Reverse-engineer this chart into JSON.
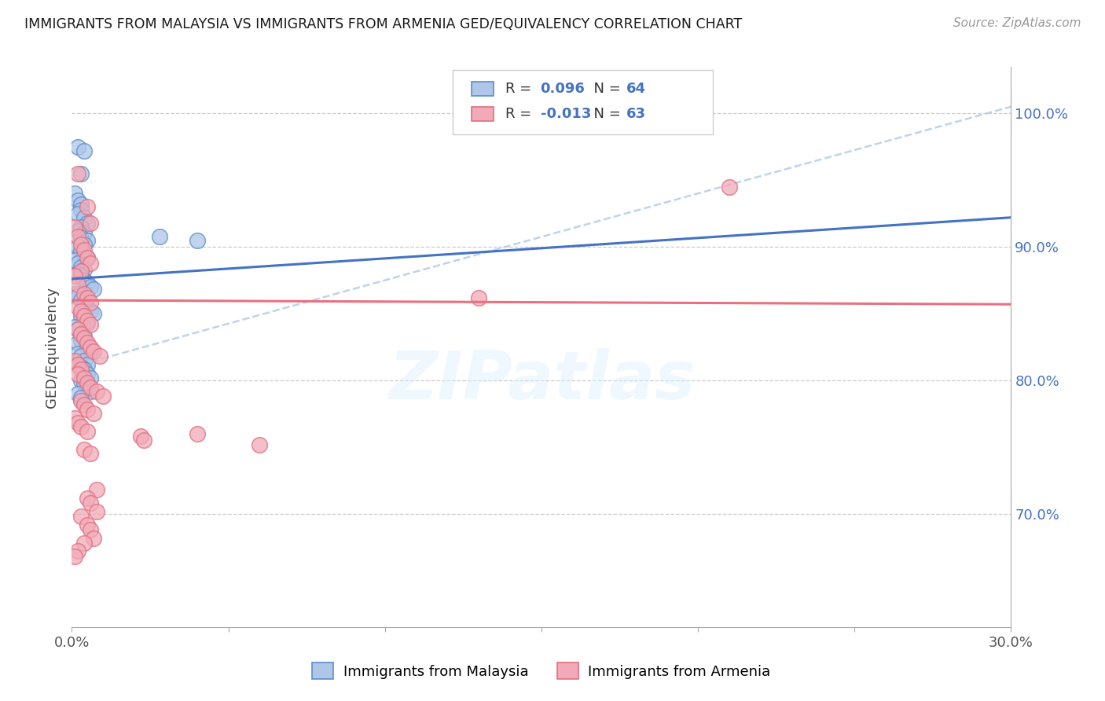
{
  "title": "IMMIGRANTS FROM MALAYSIA VS IMMIGRANTS FROM ARMENIA GED/EQUIVALENCY CORRELATION CHART",
  "source": "Source: ZipAtlas.com",
  "ylabel": "GED/Equivalency",
  "x_range": [
    0.0,
    0.3
  ],
  "y_range": [
    0.615,
    1.035
  ],
  "y_ticks": [
    0.7,
    0.8,
    0.9,
    1.0
  ],
  "y_tick_labels": [
    "70.0%",
    "80.0%",
    "90.0%",
    "100.0%"
  ],
  "x_ticks": [
    0.0,
    0.05,
    0.1,
    0.15,
    0.2,
    0.25,
    0.3
  ],
  "x_tick_labels": [
    "0.0%",
    "",
    "",
    "",
    "",
    "",
    "30.0%"
  ],
  "malaysia_R": 0.096,
  "malaysia_N": 64,
  "armenia_R": -0.013,
  "armenia_N": 63,
  "malaysia_color": "#aec6e8",
  "armenia_color": "#f2aab8",
  "malaysia_edge_color": "#5b8fc9",
  "armenia_edge_color": "#e07080",
  "malaysia_line_color": "#4472c4",
  "armenia_line_color": "#e87080",
  "dashed_line_color": "#b8cfe8",
  "legend_label_malaysia": "Immigrants from Malaysia",
  "legend_label_armenia": "Immigrants from Armenia",
  "watermark": "ZIPatlas",
  "malaysia_line_x0": 0.0,
  "malaysia_line_y0": 0.876,
  "malaysia_line_x1": 0.3,
  "malaysia_line_y1": 0.922,
  "armenia_line_x0": 0.0,
  "armenia_line_y0": 0.86,
  "armenia_line_x1": 0.3,
  "armenia_line_y1": 0.857,
  "dash_line_x0": 0.0,
  "dash_line_y0": 0.81,
  "dash_line_x1": 0.3,
  "dash_line_y1": 1.005,
  "malaysia_x": [
    0.002,
    0.004,
    0.003,
    0.001,
    0.002,
    0.003,
    0.003,
    0.002,
    0.004,
    0.005,
    0.003,
    0.002,
    0.004,
    0.003,
    0.005,
    0.004,
    0.002,
    0.003,
    0.004,
    0.005,
    0.001,
    0.002,
    0.003,
    0.004,
    0.002,
    0.003,
    0.004,
    0.005,
    0.006,
    0.007,
    0.001,
    0.002,
    0.003,
    0.004,
    0.005,
    0.006,
    0.007,
    0.003,
    0.004,
    0.005,
    0.001,
    0.002,
    0.003,
    0.004,
    0.003,
    0.002,
    0.005,
    0.006,
    0.002,
    0.003,
    0.004,
    0.005,
    0.003,
    0.004,
    0.005,
    0.006,
    0.003,
    0.004,
    0.005,
    0.006,
    0.002,
    0.003,
    0.04,
    0.028
  ],
  "malaysia_y": [
    0.975,
    0.972,
    0.955,
    0.94,
    0.935,
    0.932,
    0.928,
    0.925,
    0.922,
    0.918,
    0.915,
    0.912,
    0.91,
    0.907,
    0.905,
    0.902,
    0.9,
    0.897,
    0.895,
    0.892,
    0.89,
    0.888,
    0.885,
    0.883,
    0.88,
    0.878,
    0.875,
    0.873,
    0.87,
    0.868,
    0.865,
    0.863,
    0.86,
    0.857,
    0.855,
    0.852,
    0.85,
    0.848,
    0.845,
    0.843,
    0.84,
    0.838,
    0.835,
    0.833,
    0.83,
    0.828,
    0.825,
    0.822,
    0.82,
    0.818,
    0.815,
    0.812,
    0.81,
    0.808,
    0.805,
    0.802,
    0.8,
    0.797,
    0.795,
    0.792,
    0.79,
    0.787,
    0.905,
    0.908
  ],
  "armenia_x": [
    0.002,
    0.005,
    0.006,
    0.001,
    0.002,
    0.003,
    0.004,
    0.005,
    0.006,
    0.003,
    0.001,
    0.002,
    0.004,
    0.005,
    0.006,
    0.002,
    0.003,
    0.004,
    0.005,
    0.006,
    0.002,
    0.003,
    0.004,
    0.005,
    0.006,
    0.007,
    0.009,
    0.001,
    0.002,
    0.003,
    0.002,
    0.004,
    0.005,
    0.006,
    0.008,
    0.01,
    0.003,
    0.004,
    0.005,
    0.007,
    0.001,
    0.002,
    0.003,
    0.005,
    0.04,
    0.022,
    0.023,
    0.06,
    0.004,
    0.006,
    0.008,
    0.005,
    0.006,
    0.008,
    0.003,
    0.005,
    0.006,
    0.007,
    0.004,
    0.002,
    0.001,
    0.21,
    0.13
  ],
  "armenia_y": [
    0.955,
    0.93,
    0.918,
    0.915,
    0.908,
    0.902,
    0.898,
    0.892,
    0.888,
    0.882,
    0.878,
    0.872,
    0.865,
    0.862,
    0.858,
    0.855,
    0.852,
    0.848,
    0.845,
    0.842,
    0.838,
    0.835,
    0.832,
    0.828,
    0.825,
    0.822,
    0.818,
    0.815,
    0.812,
    0.808,
    0.805,
    0.802,
    0.798,
    0.795,
    0.792,
    0.788,
    0.785,
    0.782,
    0.778,
    0.775,
    0.772,
    0.768,
    0.765,
    0.762,
    0.76,
    0.758,
    0.755,
    0.752,
    0.748,
    0.745,
    0.718,
    0.712,
    0.708,
    0.702,
    0.698,
    0.692,
    0.688,
    0.682,
    0.678,
    0.672,
    0.668,
    0.945,
    0.862
  ]
}
